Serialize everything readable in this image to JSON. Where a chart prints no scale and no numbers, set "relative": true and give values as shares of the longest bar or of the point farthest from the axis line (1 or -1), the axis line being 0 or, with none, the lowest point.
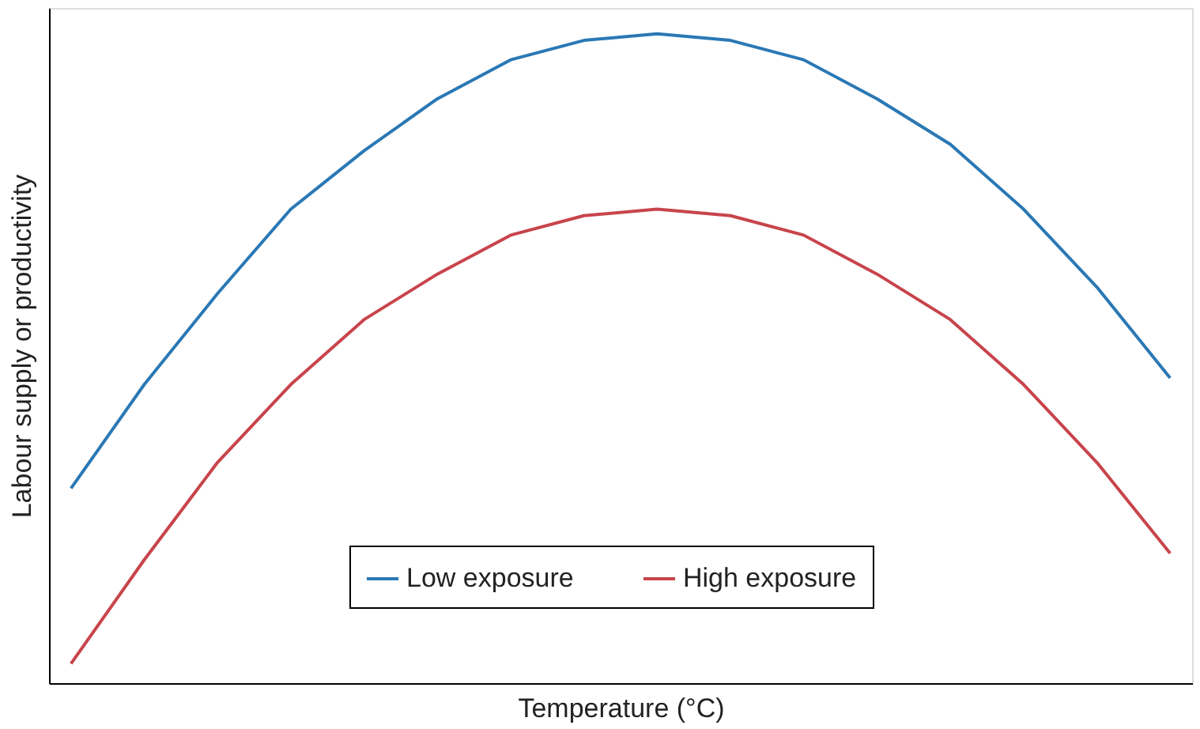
{
  "chart_data": {
    "type": "line",
    "relative": true,
    "xlabel": "Temperature (°C)",
    "ylabel": "Labour supply or productivity",
    "categories": [
      null,
      null,
      null,
      null,
      null,
      null,
      null,
      null,
      null,
      null,
      null,
      null,
      null,
      null,
      null,
      null
    ],
    "series": [
      {
        "name": "Low exposure",
        "color": "#2a78b5",
        "values": [
          0.3,
          0.46,
          0.6,
          0.73,
          0.82,
          0.9,
          0.96,
          0.99,
          1.0,
          0.99,
          0.96,
          0.9,
          0.83,
          0.73,
          0.61,
          0.47
        ]
      },
      {
        "name": "High exposure",
        "color": "#c8444b",
        "values": [
          0.03,
          0.19,
          0.34,
          0.46,
          0.56,
          0.63,
          0.69,
          0.72,
          0.73,
          0.72,
          0.69,
          0.63,
          0.56,
          0.46,
          0.34,
          0.2
        ]
      }
    ],
    "legend": "bottom",
    "grid": false,
    "marker": "none",
    "line_style": "solid"
  }
}
